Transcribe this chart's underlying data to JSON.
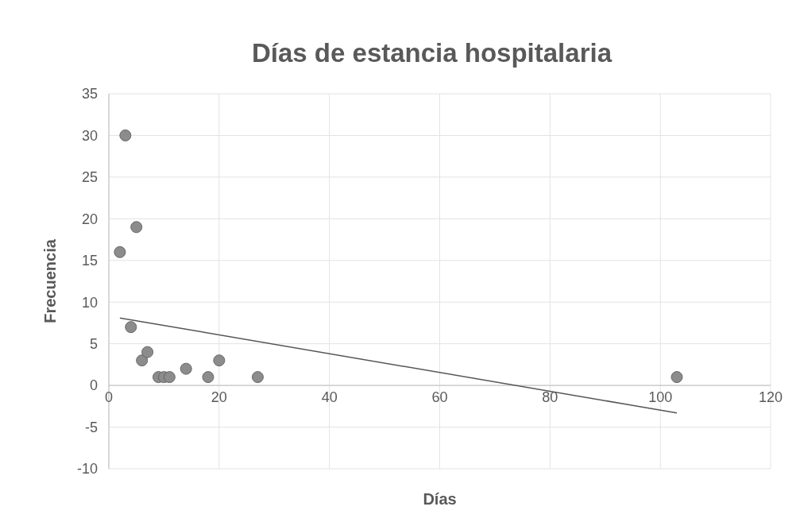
{
  "chart_data": {
    "type": "scatter",
    "title": "Días de estancia hospitalaria",
    "xlabel": "Días",
    "ylabel": "Frecuencia",
    "xlim": [
      0,
      120
    ],
    "xticks": [
      0,
      20,
      40,
      60,
      80,
      100,
      120
    ],
    "ylim": [
      -10,
      35
    ],
    "yticks": [
      -10,
      -5,
      0,
      5,
      10,
      15,
      20,
      25,
      30,
      35
    ],
    "grid": true,
    "series": [
      {
        "marker": "circle",
        "color": "#8c8c8c",
        "x": [
          2,
          3,
          5,
          4,
          6,
          7,
          9,
          10,
          11,
          14,
          18,
          20,
          27,
          103
        ],
        "values": [
          16,
          30,
          19,
          7,
          3,
          4,
          1,
          1,
          1,
          2,
          1,
          3,
          1,
          1
        ]
      },
      {
        "type": "line",
        "color": "#555555",
        "x": [
          2,
          103
        ],
        "values": [
          8.1,
          -3.3
        ],
        "line_style": "solid",
        "marker": "none"
      }
    ]
  }
}
